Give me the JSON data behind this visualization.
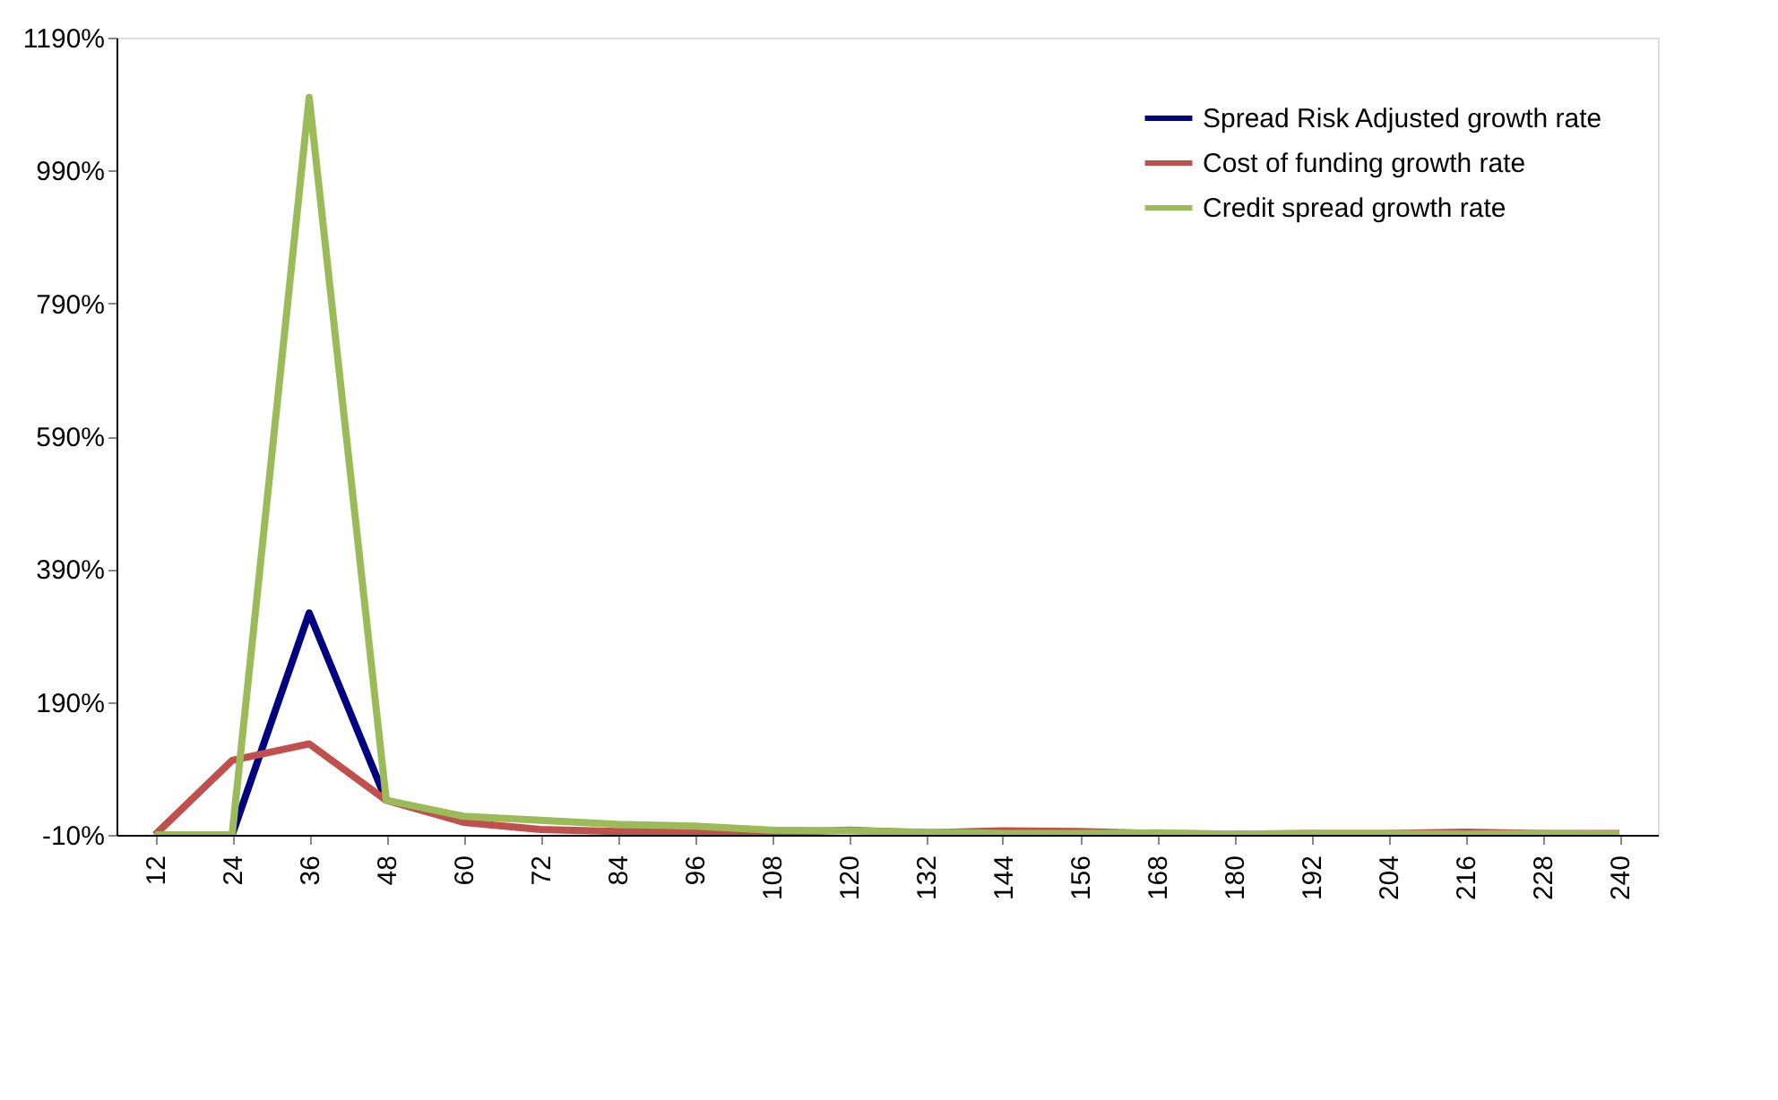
{
  "chart_data": {
    "type": "line",
    "categories": [
      "12",
      "24",
      "36",
      "48",
      "60",
      "72",
      "84",
      "96",
      "108",
      "120",
      "132",
      "144",
      "156",
      "168",
      "180",
      "192",
      "204",
      "216",
      "228",
      "240"
    ],
    "series": [
      {
        "name": "Spread Risk Adjusted growth rate",
        "color": "#000080",
        "values": [
          null,
          -10,
          324,
          42,
          null,
          null,
          null,
          null,
          null,
          null,
          null,
          null,
          null,
          null,
          null,
          null,
          null,
          null,
          null,
          null
        ]
      },
      {
        "name": "Cost of funding growth rate",
        "color": "#c0504d",
        "values": [
          -10,
          102,
          127,
          42,
          9,
          -2,
          -5,
          -5,
          -7,
          -3,
          -7,
          -4,
          -5,
          -8,
          -9,
          -8,
          -8,
          -6,
          -8,
          -8
        ]
      },
      {
        "name": "Credit spread growth rate",
        "color": "#9bbb59",
        "values": [
          -10,
          -10,
          1100,
          42,
          18,
          12,
          6,
          3,
          -3,
          -4,
          -6,
          -8,
          -8,
          -7,
          -9,
          -8,
          -8,
          -9,
          -8,
          -9
        ]
      }
    ],
    "ylim": [
      -10,
      1190
    ],
    "yticks": [
      {
        "value": -10,
        "label": "-10%"
      },
      {
        "value": 190,
        "label": "190%"
      },
      {
        "value": 390,
        "label": "390%"
      },
      {
        "value": 590,
        "label": "590%"
      },
      {
        "value": 790,
        "label": "790%"
      },
      {
        "value": 990,
        "label": "990%"
      },
      {
        "value": 1190,
        "label": "1190%"
      }
    ],
    "grid": false,
    "legend": "top right",
    "marker": "none",
    "line_style": "solid"
  }
}
